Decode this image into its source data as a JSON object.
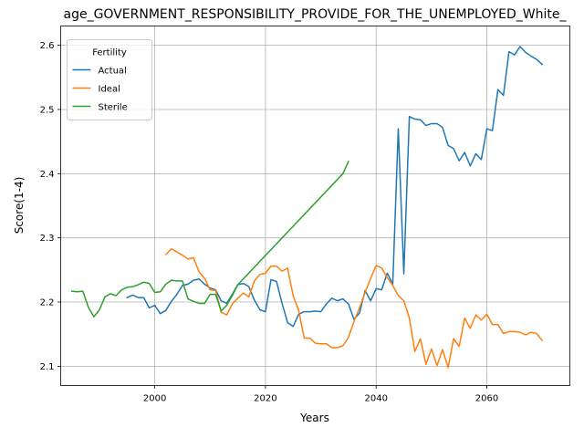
{
  "chart_data": {
    "type": "line",
    "title": "age_GOVERNMENT_RESPONSIBILITY_PROVIDE_FOR_THE_UNEMPLOYED_White_",
    "xlabel": "Years",
    "ylabel": "Score(1-4)",
    "xlim": [
      1983,
      2075
    ],
    "ylim": [
      2.07,
      2.63
    ],
    "xticks": [
      2000,
      2020,
      2040,
      2060
    ],
    "yticks": [
      2.1,
      2.2,
      2.3,
      2.4,
      2.5,
      2.6
    ],
    "grid": true,
    "legend": {
      "title": "Fertility",
      "placement": "upper-left"
    },
    "series": [
      {
        "name": "Actual",
        "color": "#1f77b4",
        "points": [
          [
            1995,
            2.207
          ],
          [
            1996,
            2.211
          ],
          [
            1997,
            2.207
          ],
          [
            1998,
            2.207
          ],
          [
            1999,
            2.191
          ],
          [
            2000,
            2.195
          ],
          [
            2001,
            2.182
          ],
          [
            2002,
            2.187
          ],
          [
            2003,
            2.201
          ],
          [
            2004,
            2.212
          ],
          [
            2005,
            2.226
          ],
          [
            2006,
            2.228
          ],
          [
            2007,
            2.234
          ],
          [
            2008,
            2.236
          ],
          [
            2009,
            2.228
          ],
          [
            2010,
            2.222
          ],
          [
            2011,
            2.219
          ],
          [
            2012,
            2.202
          ],
          [
            2013,
            2.198
          ],
          [
            2014,
            2.212
          ],
          [
            2015,
            2.227
          ],
          [
            2016,
            2.229
          ],
          [
            2017,
            2.224
          ],
          [
            2018,
            2.203
          ],
          [
            2019,
            2.188
          ],
          [
            2020,
            2.185
          ],
          [
            2021,
            2.235
          ],
          [
            2022,
            2.232
          ],
          [
            2023,
            2.198
          ],
          [
            2024,
            2.168
          ],
          [
            2025,
            2.162
          ],
          [
            2026,
            2.181
          ],
          [
            2027,
            2.185
          ],
          [
            2028,
            2.185
          ],
          [
            2029,
            2.186
          ],
          [
            2030,
            2.185
          ],
          [
            2031,
            2.197
          ],
          [
            2032,
            2.206
          ],
          [
            2033,
            2.202
          ],
          [
            2034,
            2.205
          ],
          [
            2035,
            2.197
          ],
          [
            2036,
            2.173
          ],
          [
            2037,
            2.183
          ],
          [
            2038,
            2.218
          ],
          [
            2039,
            2.202
          ],
          [
            2040,
            2.221
          ],
          [
            2041,
            2.219
          ],
          [
            2042,
            2.245
          ],
          [
            2043,
            2.228
          ],
          [
            2044,
            2.47
          ],
          [
            2045,
            2.244
          ],
          [
            2046,
            2.489
          ],
          [
            2047,
            2.485
          ],
          [
            2048,
            2.484
          ],
          [
            2049,
            2.475
          ],
          [
            2050,
            2.478
          ],
          [
            2051,
            2.478
          ],
          [
            2052,
            2.472
          ],
          [
            2053,
            2.444
          ],
          [
            2054,
            2.439
          ],
          [
            2055,
            2.42
          ],
          [
            2056,
            2.433
          ],
          [
            2057,
            2.412
          ],
          [
            2058,
            2.431
          ],
          [
            2059,
            2.422
          ],
          [
            2060,
            2.47
          ],
          [
            2061,
            2.467
          ],
          [
            2062,
            2.531
          ],
          [
            2063,
            2.522
          ],
          [
            2064,
            2.59
          ],
          [
            2065,
            2.585
          ],
          [
            2066,
            2.598
          ],
          [
            2067,
            2.589
          ],
          [
            2068,
            2.583
          ],
          [
            2069,
            2.578
          ],
          [
            2070,
            2.57
          ]
        ]
      },
      {
        "name": "Ideal",
        "color": "#ff7f0e",
        "points": [
          [
            2002,
            2.274
          ],
          [
            2003,
            2.283
          ],
          [
            2004,
            2.278
          ],
          [
            2005,
            2.273
          ],
          [
            2006,
            2.267
          ],
          [
            2007,
            2.269
          ],
          [
            2008,
            2.247
          ],
          [
            2009,
            2.237
          ],
          [
            2010,
            2.219
          ],
          [
            2011,
            2.218
          ],
          [
            2012,
            2.184
          ],
          [
            2013,
            2.18
          ],
          [
            2014,
            2.197
          ],
          [
            2015,
            2.206
          ],
          [
            2016,
            2.214
          ],
          [
            2017,
            2.208
          ],
          [
            2018,
            2.233
          ],
          [
            2019,
            2.243
          ],
          [
            2020,
            2.245
          ],
          [
            2021,
            2.256
          ],
          [
            2022,
            2.256
          ],
          [
            2023,
            2.248
          ],
          [
            2024,
            2.253
          ],
          [
            2025,
            2.21
          ],
          [
            2026,
            2.187
          ],
          [
            2027,
            2.144
          ],
          [
            2028,
            2.144
          ],
          [
            2029,
            2.136
          ],
          [
            2030,
            2.135
          ],
          [
            2031,
            2.135
          ],
          [
            2032,
            2.129
          ],
          [
            2033,
            2.129
          ],
          [
            2034,
            2.132
          ],
          [
            2035,
            2.145
          ],
          [
            2036,
            2.17
          ],
          [
            2037,
            2.191
          ],
          [
            2038,
            2.215
          ],
          [
            2039,
            2.237
          ],
          [
            2040,
            2.257
          ],
          [
            2041,
            2.253
          ],
          [
            2042,
            2.238
          ],
          [
            2043,
            2.226
          ],
          [
            2044,
            2.21
          ],
          [
            2045,
            2.202
          ],
          [
            2046,
            2.175
          ],
          [
            2047,
            2.123
          ],
          [
            2048,
            2.143
          ],
          [
            2049,
            2.103
          ],
          [
            2050,
            2.127
          ],
          [
            2051,
            2.101
          ],
          [
            2052,
            2.126
          ],
          [
            2053,
            2.098
          ],
          [
            2054,
            2.143
          ],
          [
            2055,
            2.131
          ],
          [
            2056,
            2.175
          ],
          [
            2057,
            2.159
          ],
          [
            2058,
            2.18
          ],
          [
            2059,
            2.172
          ],
          [
            2060,
            2.181
          ],
          [
            2061,
            2.165
          ],
          [
            2062,
            2.165
          ],
          [
            2063,
            2.151
          ],
          [
            2064,
            2.154
          ],
          [
            2065,
            2.154
          ],
          [
            2066,
            2.153
          ],
          [
            2067,
            2.149
          ],
          [
            2068,
            2.153
          ],
          [
            2069,
            2.151
          ],
          [
            2070,
            2.14
          ]
        ]
      },
      {
        "name": "Sterile",
        "color": "#2ca02c",
        "points": [
          [
            1985,
            2.217
          ],
          [
            1986,
            2.216
          ],
          [
            1987,
            2.217
          ],
          [
            1988,
            2.192
          ],
          [
            1989,
            2.177
          ],
          [
            1990,
            2.188
          ],
          [
            1991,
            2.208
          ],
          [
            1992,
            2.213
          ],
          [
            1993,
            2.21
          ],
          [
            1994,
            2.219
          ],
          [
            1995,
            2.223
          ],
          [
            1996,
            2.224
          ],
          [
            1997,
            2.227
          ],
          [
            1998,
            2.231
          ],
          [
            1999,
            2.229
          ],
          [
            2000,
            2.215
          ],
          [
            2001,
            2.216
          ],
          [
            2002,
            2.228
          ],
          [
            2003,
            2.234
          ],
          [
            2004,
            2.233
          ],
          [
            2005,
            2.233
          ],
          [
            2006,
            2.205
          ],
          [
            2007,
            2.201
          ],
          [
            2008,
            2.198
          ],
          [
            2009,
            2.198
          ],
          [
            2010,
            2.212
          ],
          [
            2011,
            2.212
          ],
          [
            2012,
            2.186
          ],
          [
            2013,
            2.195
          ],
          [
            2014,
            2.21
          ],
          [
            2015,
            2.227
          ],
          [
            2034,
            2.4
          ],
          [
            2035,
            2.419
          ]
        ]
      }
    ]
  }
}
